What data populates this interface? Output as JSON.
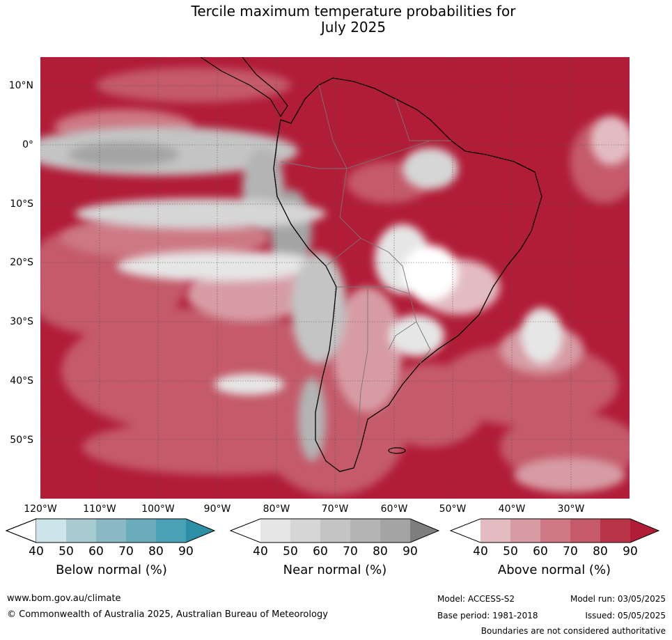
{
  "title": {
    "line1": "Tercile maximum temperature probabilities for",
    "line2": "July 2025"
  },
  "lat_labels": [
    "10°N",
    "0°",
    "10°S",
    "20°S",
    "30°S",
    "40°S",
    "50°S"
  ],
  "lon_labels": [
    "120°W",
    "110°W",
    "100°W",
    "90°W",
    "80°W",
    "70°W",
    "60°W",
    "50°W",
    "40°W",
    "30°W"
  ],
  "legends": [
    {
      "title": "Below normal (%)",
      "ticks": [
        "40",
        "50",
        "60",
        "70",
        "80",
        "90"
      ],
      "colors": [
        "#ffffff",
        "#cde4ea",
        "#a8cad1",
        "#8ab8c4",
        "#6aacbc",
        "#48a1b4",
        "#2c8fa5"
      ]
    },
    {
      "title": "Near normal (%)",
      "ticks": [
        "40",
        "50",
        "60",
        "70",
        "80",
        "90"
      ],
      "colors": [
        "#ffffff",
        "#e6e6e6",
        "#d6d6d6",
        "#c4c4c4",
        "#b4b4b4",
        "#a4a4a4",
        "#7e7e7e"
      ]
    },
    {
      "title": "Above normal (%)",
      "ticks": [
        "40",
        "50",
        "60",
        "70",
        "80",
        "90"
      ],
      "colors": [
        "#ffffff",
        "#e3bcc2",
        "#d79ba4",
        "#cd7884",
        "#c45a6a",
        "#b83549",
        "#b11c37"
      ]
    }
  ],
  "footer": {
    "website": "www.bom.gov.au/climate",
    "copyright": "© Commonwealth of Australia 2025, Australian Bureau of Meteorology",
    "model": "Model: ACCESS-S2",
    "base_period": "Base period: 1981-2018",
    "model_run": "Model run: 03/05/2025",
    "issued": "Issued: 05/05/2025",
    "disclaimer": "Boundaries are not considered authoritative"
  }
}
